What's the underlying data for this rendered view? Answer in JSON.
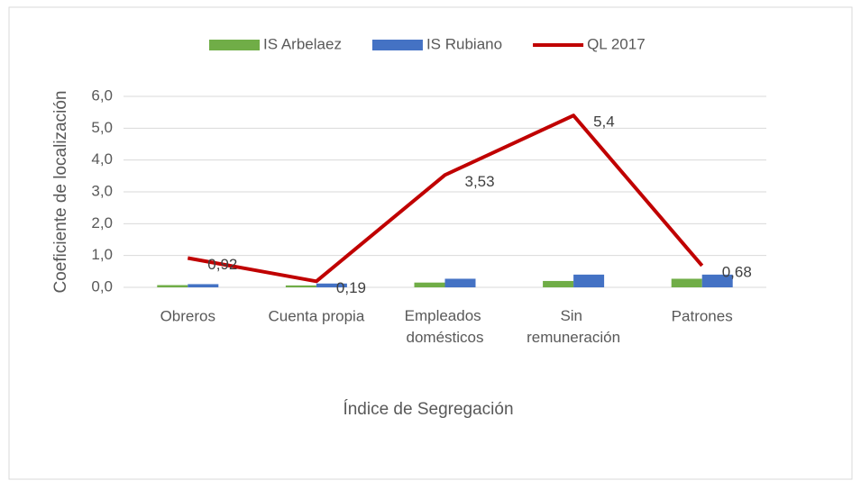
{
  "chart_data": {
    "type": "bar-line",
    "categories": [
      "Obreros",
      "Cuenta propia",
      "Empleados domésticos",
      "Sin remuneración",
      "Patrones"
    ],
    "series": [
      {
        "name": "IS Arbelaez",
        "type": "bar",
        "color": "#70ad47",
        "values": [
          0.07,
          0.06,
          0.15,
          0.2,
          0.27
        ]
      },
      {
        "name": "IS Rubiano",
        "type": "bar",
        "color": "#4472c4",
        "values": [
          0.1,
          0.12,
          0.27,
          0.4,
          0.4
        ]
      },
      {
        "name": "QL 2017",
        "type": "line",
        "color": "#c00000",
        "values": [
          0.92,
          0.19,
          3.53,
          5.4,
          0.68
        ],
        "value_labels": [
          "0,92",
          "0,19",
          "3,53",
          "5,4",
          "0,68"
        ]
      }
    ],
    "x_label": "Índice de Segregación",
    "y_label": "Coeficiente de localización",
    "ylim": [
      0,
      6
    ],
    "yticks": [
      {
        "value": 0,
        "label": "0,0"
      },
      {
        "value": 1,
        "label": "1,0"
      },
      {
        "value": 2,
        "label": "2,0"
      },
      {
        "value": 3,
        "label": "3,0"
      },
      {
        "value": 4,
        "label": "4,0"
      },
      {
        "value": 5,
        "label": "5,0"
      },
      {
        "value": 6,
        "label": "6,0"
      }
    ],
    "grid": true,
    "legend": "top"
  }
}
